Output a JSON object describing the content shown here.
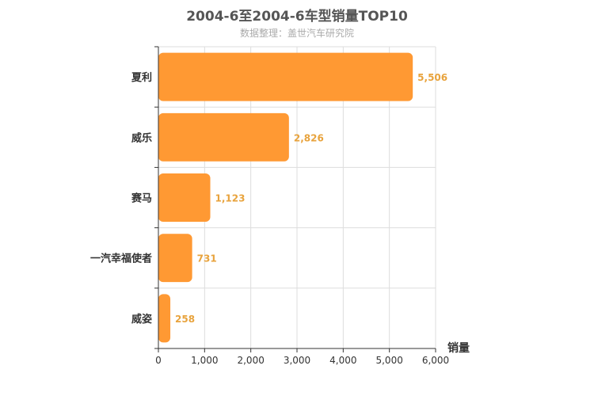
{
  "chart_data": {
    "type": "bar",
    "orientation": "horizontal",
    "title": "2004-6至2004-6车型销量TOP10",
    "subtitle": "数据整理：盖世汽车研究院",
    "categories": [
      "夏利",
      "威乐",
      "赛马",
      "一汽幸福使者",
      "威姿"
    ],
    "values": [
      5506,
      2826,
      1123,
      731,
      258
    ],
    "value_labels": [
      "5,506",
      "2,826",
      "1,123",
      "731",
      "258"
    ],
    "xlabel": "销量",
    "xlim": [
      0,
      6000
    ],
    "x_ticks": [
      0,
      1000,
      2000,
      3000,
      4000,
      5000,
      6000
    ],
    "x_tick_labels": [
      "0",
      "1,000",
      "2,000",
      "3,000",
      "4,000",
      "5,000",
      "6,000"
    ],
    "grid": true,
    "bar_color": "#ff9933",
    "label_color": "#e8a33d"
  }
}
